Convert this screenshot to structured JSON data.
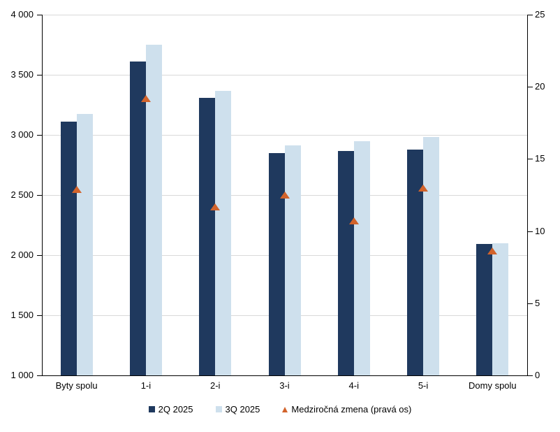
{
  "chart_data": {
    "type": "bar",
    "title": "",
    "categories": [
      "Byty spolu",
      "1-i",
      "2-i",
      "3-i",
      "4-i",
      "5-i",
      "Domy spolu"
    ],
    "series": [
      {
        "name": "2Q 2025",
        "type": "bar",
        "axis": "left",
        "color": "#1f395e",
        "values": [
          3110,
          3610,
          3310,
          2850,
          2865,
          2880,
          2095
        ]
      },
      {
        "name": "3Q 2025",
        "type": "bar",
        "axis": "left",
        "color": "#cee0ed",
        "values": [
          3175,
          3750,
          3365,
          2910,
          2945,
          2980,
          2100
        ]
      },
      {
        "name": "Medziročná zmena (pravá os)",
        "type": "scatter",
        "marker": "triangle",
        "axis": "right",
        "color": "#d2632b",
        "values": [
          12.9,
          19.2,
          11.7,
          12.5,
          10.7,
          13.0,
          8.6
        ]
      }
    ],
    "left_axis": {
      "min": 1000,
      "max": 4000,
      "step": 500,
      "labels": [
        "4 000",
        "3 500",
        "3 000",
        "2 500",
        "2 000",
        "1 500",
        "1 000"
      ]
    },
    "right_axis": {
      "min": 0,
      "max": 25,
      "step": 5,
      "labels": [
        "25",
        "20",
        "15",
        "10",
        "5",
        "0"
      ]
    },
    "grid": true,
    "gridline_color": "#d9d9d9",
    "axis_color": "#000000",
    "background_color": "#ffffff",
    "legend_position": "bottom"
  }
}
